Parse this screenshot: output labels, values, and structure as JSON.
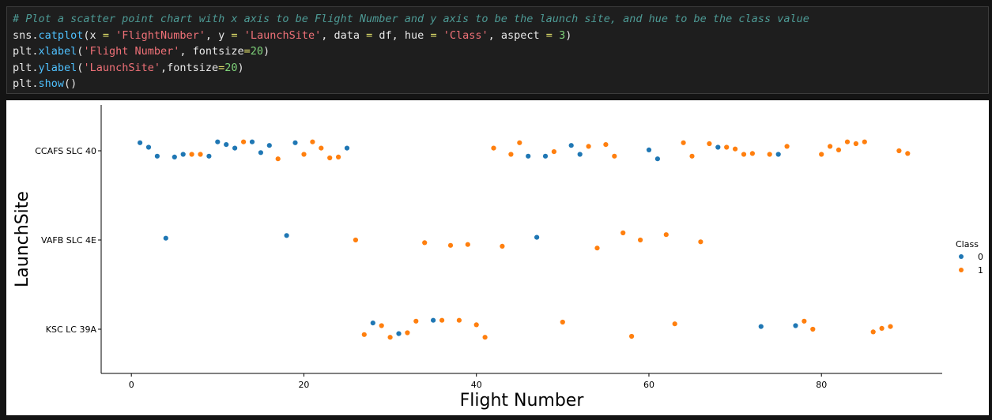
{
  "code": {
    "comment": "# Plot a scatter point chart with x axis to be Flight Number and y axis to be the launch site, and hue to be the class value",
    "line1": {
      "prefix": "sns.",
      "fn": "catplot",
      "a": "(x ",
      "eq1": "=",
      "b": " ",
      "s1": "'FlightNumber'",
      "c": ", y ",
      "eq2": "=",
      "d": " ",
      "s2": "'LaunchSite'",
      "e": ", data ",
      "eq3": "=",
      "f": " df, hue ",
      "eq4": "=",
      "g": " ",
      "s3": "'Class'",
      "h": ", aspect ",
      "eq5": "=",
      "i": " ",
      "n1": "3",
      "j": ")"
    },
    "line2": {
      "prefix": "plt.",
      "fn": "xlabel",
      "a": "(",
      "s1": "'Flight Number'",
      "b": ", fontsize",
      "eq": "=",
      "n": "20",
      "c": ")"
    },
    "line3": {
      "prefix": "plt.",
      "fn": "ylabel",
      "a": "(",
      "s1": "'LaunchSite'",
      "b": ",fontsize",
      "eq": "=",
      "n": "20",
      "c": ")"
    },
    "line4": {
      "prefix": "plt.",
      "fn": "show",
      "a": "()"
    }
  },
  "chart_data": {
    "type": "scatter",
    "xlabel": "Flight Number",
    "ylabel": "LaunchSite",
    "categories": [
      "CCAFS SLC 40",
      "VAFB SLC 4E",
      "KSC LC 39A"
    ],
    "xlim": [
      -3.5,
      94
    ],
    "xticks": [
      0,
      20,
      40,
      60,
      80
    ],
    "legend": {
      "title": "Class",
      "entries": [
        "0",
        "1"
      ],
      "placement": "right"
    },
    "colors": {
      "0": "#1f77b4",
      "1": "#ff7f0e"
    },
    "series": [
      {
        "name": "0",
        "points": [
          [
            1,
            "CCAFS SLC 40",
            0.09
          ],
          [
            2,
            "CCAFS SLC 40",
            0.04
          ],
          [
            3,
            "CCAFS SLC 40",
            -0.06
          ],
          [
            5,
            "CCAFS SLC 40",
            -0.07
          ],
          [
            6,
            "CCAFS SLC 40",
            -0.04
          ],
          [
            9,
            "CCAFS SLC 40",
            -0.06
          ],
          [
            10,
            "CCAFS SLC 40",
            0.1
          ],
          [
            11,
            "CCAFS SLC 40",
            0.07
          ],
          [
            12,
            "CCAFS SLC 40",
            0.03
          ],
          [
            14,
            "CCAFS SLC 40",
            0.1
          ],
          [
            15,
            "CCAFS SLC 40",
            -0.02
          ],
          [
            16,
            "CCAFS SLC 40",
            0.06
          ],
          [
            19,
            "CCAFS SLC 40",
            0.09
          ],
          [
            25,
            "CCAFS SLC 40",
            0.03
          ],
          [
            46,
            "CCAFS SLC 40",
            -0.06
          ],
          [
            48,
            "CCAFS SLC 40",
            -0.06
          ],
          [
            51,
            "CCAFS SLC 40",
            0.06
          ],
          [
            52,
            "CCAFS SLC 40",
            -0.04
          ],
          [
            60,
            "CCAFS SLC 40",
            0.01
          ],
          [
            61,
            "CCAFS SLC 40",
            -0.09
          ],
          [
            68,
            "CCAFS SLC 40",
            0.04
          ],
          [
            75,
            "CCAFS SLC 40",
            -0.04
          ],
          [
            4,
            "VAFB SLC 4E",
            0.02
          ],
          [
            18,
            "VAFB SLC 4E",
            0.05
          ],
          [
            47,
            "VAFB SLC 4E",
            0.03
          ],
          [
            28,
            "KSC LC 39A",
            0.07
          ],
          [
            31,
            "KSC LC 39A",
            -0.05
          ],
          [
            35,
            "KSC LC 39A",
            0.1
          ],
          [
            73,
            "KSC LC 39A",
            0.03
          ],
          [
            77,
            "KSC LC 39A",
            0.04
          ]
        ]
      },
      {
        "name": "1",
        "points": [
          [
            7,
            "CCAFS SLC 40",
            -0.04
          ],
          [
            8,
            "CCAFS SLC 40",
            -0.04
          ],
          [
            13,
            "CCAFS SLC 40",
            0.1
          ],
          [
            17,
            "CCAFS SLC 40",
            -0.09
          ],
          [
            20,
            "CCAFS SLC 40",
            -0.04
          ],
          [
            21,
            "CCAFS SLC 40",
            0.1
          ],
          [
            22,
            "CCAFS SLC 40",
            0.03
          ],
          [
            23,
            "CCAFS SLC 40",
            -0.08
          ],
          [
            24,
            "CCAFS SLC 40",
            -0.07
          ],
          [
            42,
            "CCAFS SLC 40",
            0.03
          ],
          [
            44,
            "CCAFS SLC 40",
            -0.04
          ],
          [
            45,
            "CCAFS SLC 40",
            0.09
          ],
          [
            49,
            "CCAFS SLC 40",
            -0.01
          ],
          [
            53,
            "CCAFS SLC 40",
            0.05
          ],
          [
            55,
            "CCAFS SLC 40",
            0.07
          ],
          [
            56,
            "CCAFS SLC 40",
            -0.06
          ],
          [
            64,
            "CCAFS SLC 40",
            0.09
          ],
          [
            65,
            "CCAFS SLC 40",
            -0.06
          ],
          [
            67,
            "CCAFS SLC 40",
            0.08
          ],
          [
            69,
            "CCAFS SLC 40",
            0.04
          ],
          [
            70,
            "CCAFS SLC 40",
            0.02
          ],
          [
            71,
            "CCAFS SLC 40",
            -0.04
          ],
          [
            72,
            "CCAFS SLC 40",
            -0.03
          ],
          [
            74,
            "CCAFS SLC 40",
            -0.04
          ],
          [
            76,
            "CCAFS SLC 40",
            0.05
          ],
          [
            80,
            "CCAFS SLC 40",
            -0.04
          ],
          [
            81,
            "CCAFS SLC 40",
            0.05
          ],
          [
            82,
            "CCAFS SLC 40",
            0.01
          ],
          [
            83,
            "CCAFS SLC 40",
            0.1
          ],
          [
            84,
            "CCAFS SLC 40",
            0.08
          ],
          [
            85,
            "CCAFS SLC 40",
            0.1
          ],
          [
            89,
            "CCAFS SLC 40",
            0.0
          ],
          [
            90,
            "CCAFS SLC 40",
            -0.03
          ],
          [
            26,
            "VAFB SLC 4E",
            0.0
          ],
          [
            34,
            "VAFB SLC 4E",
            -0.03
          ],
          [
            37,
            "VAFB SLC 4E",
            -0.06
          ],
          [
            39,
            "VAFB SLC 4E",
            -0.05
          ],
          [
            43,
            "VAFB SLC 4E",
            -0.07
          ],
          [
            54,
            "VAFB SLC 4E",
            -0.09
          ],
          [
            57,
            "VAFB SLC 4E",
            0.08
          ],
          [
            59,
            "VAFB SLC 4E",
            0.0
          ],
          [
            62,
            "VAFB SLC 4E",
            0.06
          ],
          [
            66,
            "VAFB SLC 4E",
            -0.02
          ],
          [
            27,
            "KSC LC 39A",
            -0.06
          ],
          [
            29,
            "KSC LC 39A",
            0.04
          ],
          [
            30,
            "KSC LC 39A",
            -0.09
          ],
          [
            32,
            "KSC LC 39A",
            -0.04
          ],
          [
            33,
            "KSC LC 39A",
            0.09
          ],
          [
            36,
            "KSC LC 39A",
            0.1
          ],
          [
            38,
            "KSC LC 39A",
            0.1
          ],
          [
            40,
            "KSC LC 39A",
            0.05
          ],
          [
            41,
            "KSC LC 39A",
            -0.09
          ],
          [
            50,
            "KSC LC 39A",
            0.08
          ],
          [
            58,
            "KSC LC 39A",
            -0.08
          ],
          [
            63,
            "KSC LC 39A",
            0.06
          ],
          [
            78,
            "KSC LC 39A",
            0.09
          ],
          [
            79,
            "KSC LC 39A",
            0.0
          ],
          [
            86,
            "KSC LC 39A",
            -0.03
          ],
          [
            87,
            "KSC LC 39A",
            0.01
          ],
          [
            88,
            "KSC LC 39A",
            0.03
          ]
        ]
      }
    ]
  }
}
